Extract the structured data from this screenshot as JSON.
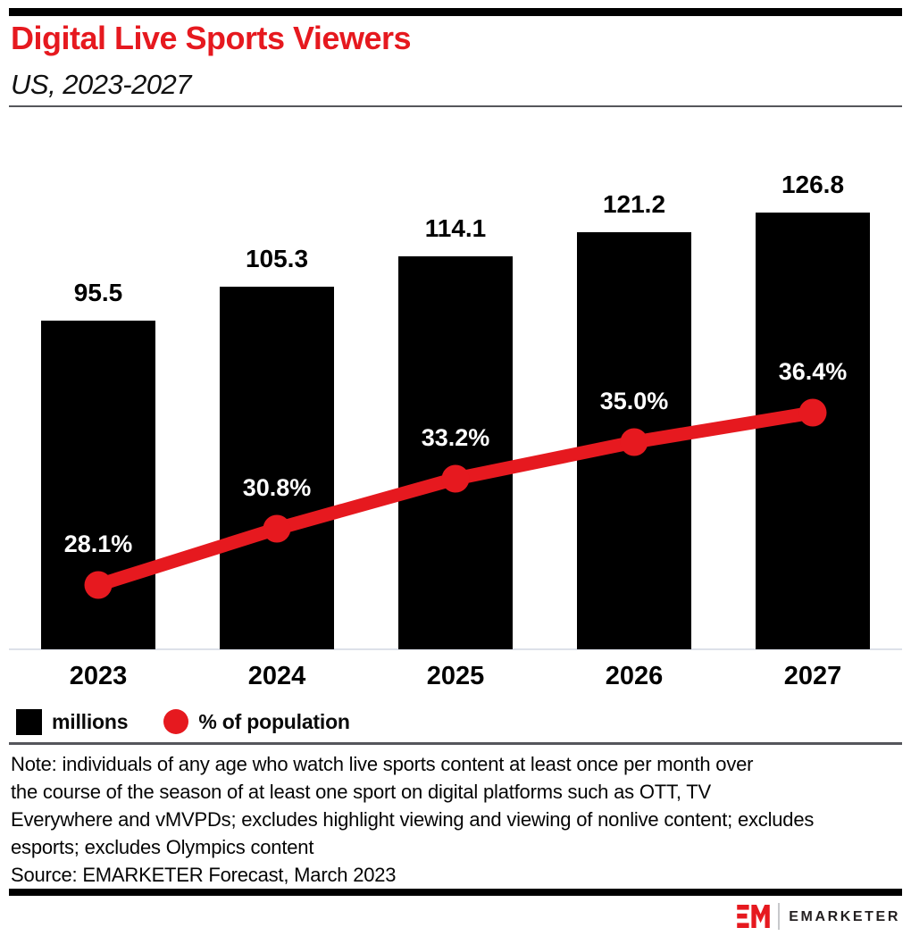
{
  "header": {
    "title": "Digital Live Sports Viewers",
    "subtitle": "US, 2023-2027"
  },
  "chart_data": {
    "type": "bar",
    "title": "Digital Live Sports Viewers",
    "subtitle": "US, 2023-2027",
    "categories": [
      "2023",
      "2024",
      "2025",
      "2026",
      "2027"
    ],
    "series": [
      {
        "name": "millions",
        "type": "bar",
        "color": "#000000",
        "values": [
          95.5,
          105.3,
          114.1,
          121.2,
          126.8
        ],
        "labels": [
          "95.5",
          "105.3",
          "114.1",
          "121.2",
          "126.8"
        ]
      },
      {
        "name": "% of population",
        "type": "line",
        "color": "#e6191f",
        "values": [
          28.1,
          30.8,
          33.2,
          35.0,
          36.4
        ],
        "labels": [
          "28.1%",
          "30.8%",
          "33.2%",
          "35.0%",
          "36.4%"
        ]
      }
    ],
    "xlabel": "",
    "ylabel": "",
    "grid": false,
    "legend_position": "bottom"
  },
  "legend": {
    "bars_label": "millions",
    "line_label": "% of population"
  },
  "note": {
    "lines": [
      "Note: individuals of any age who watch live sports content at least once per month over",
      "the course of the season of at least one sport on digital platforms such as OTT, TV",
      "Everywhere and vMVPDs; excludes highlight viewing and viewing of nonlive content; excludes",
      "esports; excludes Olympics content"
    ]
  },
  "footer": {
    "source": "Source: EMARKETER Forecast, March 2023",
    "logo_text": "EMARKETER"
  },
  "colors": {
    "accent_red": "#e6191f",
    "bar_black": "#000000",
    "pct_label_white": "#ffffff",
    "rule_gray": "#55565b",
    "baseline_gray": "#dde1e9"
  }
}
